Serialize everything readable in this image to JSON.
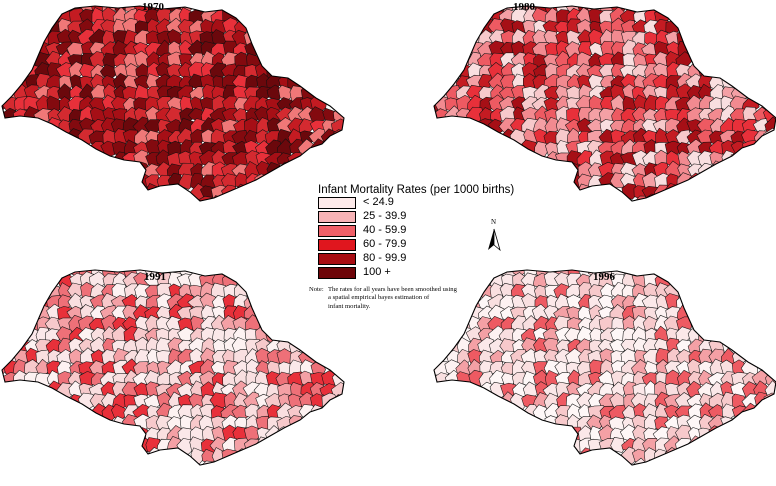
{
  "maps": [
    {
      "year": "1970",
      "palette": [
        "#e8303a",
        "#c41b22",
        "#a60f16",
        "#830a0f",
        "#6b080c",
        "#f07878",
        "#d42a30"
      ]
    },
    {
      "year": "1980",
      "palette": [
        "#f7c9cb",
        "#f4a0a5",
        "#ee5a62",
        "#e8303a",
        "#c41b22",
        "#a60f16",
        "#f9dfe0",
        "#f28a90"
      ]
    },
    {
      "year": "1991",
      "palette": [
        "#fbe8e9",
        "#f9dfe0",
        "#fdf2f2",
        "#f7c9cb",
        "#f4a0a5",
        "#ee7078",
        "#e8303a"
      ]
    },
    {
      "year": "1996",
      "palette": [
        "#fdf2f2",
        "#fbe8e9",
        "#f9dfe0",
        "#fef7f7",
        "#f7c9cb",
        "#f4a0a5",
        "#ee5a62"
      ]
    }
  ],
  "legend": {
    "title": "Infant Mortality Rates (per 1000 births)",
    "items": [
      {
        "label": "< 24.9",
        "color": "#fdeaea"
      },
      {
        "label": "25 - 39.9",
        "color": "#f7b3b6"
      },
      {
        "label": "40 - 59.9",
        "color": "#f06068"
      },
      {
        "label": "60 - 79.9",
        "color": "#e0161e"
      },
      {
        "label": "80 - 99.9",
        "color": "#a80c12"
      },
      {
        "label": "100 +",
        "color": "#6e0509"
      }
    ]
  },
  "note": {
    "key": "Note:",
    "lines": [
      "The rates for all years have been smoothed using",
      "a spatial empirical bayes estimation of",
      "infant mortality."
    ]
  },
  "north_arrow": {
    "label": "N"
  }
}
